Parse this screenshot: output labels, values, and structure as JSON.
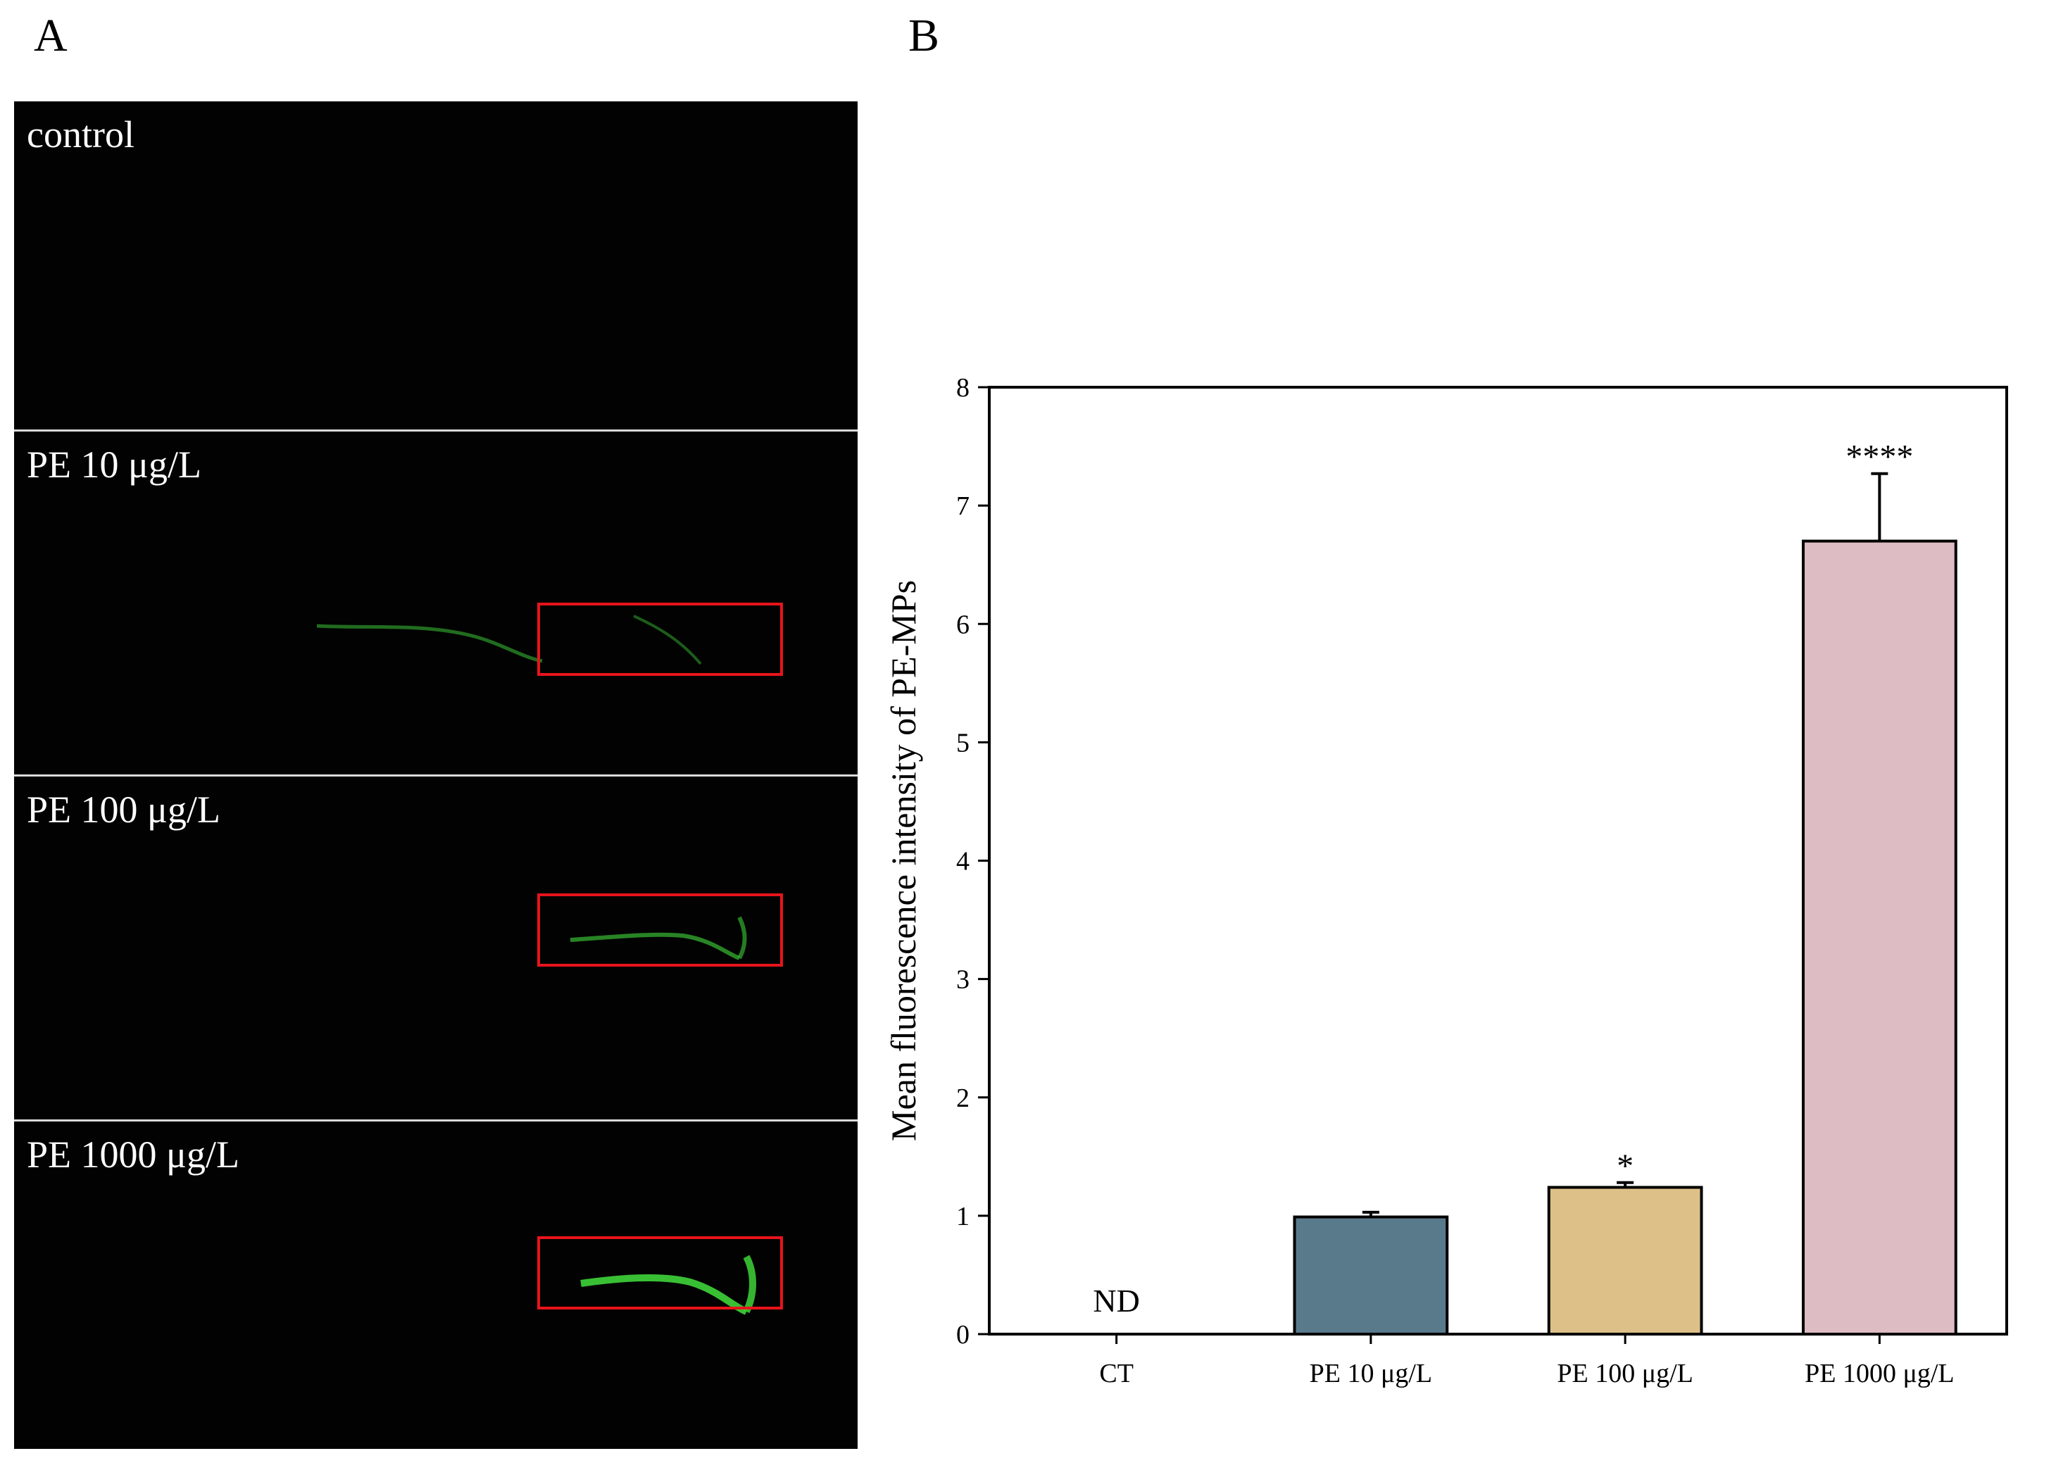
{
  "panel_labels": {
    "a": "A",
    "b": "B"
  },
  "micrographs": [
    {
      "label": "control",
      "highlight": false
    },
    {
      "label": "PE 10 μg/L",
      "highlight": true
    },
    {
      "label": "PE 100 μg/L",
      "highlight": true
    },
    {
      "label": "PE 1000 μg/L",
      "highlight": true
    }
  ],
  "colors": {
    "highlight_box": "#e8141b",
    "fluorescence": "#3fd43a"
  },
  "chart_data": {
    "type": "bar",
    "title": "",
    "xlabel": "",
    "ylabel": "Mean fluorescence intensity of PE-MPs",
    "categories": [
      "CT",
      "PE 10 μg/L",
      "PE 100 μg/L",
      "PE 1000 μg/L"
    ],
    "values": [
      0,
      0.99,
      1.24,
      6.7
    ],
    "errors": [
      0,
      0.04,
      0.04,
      0.57
    ],
    "bar_colors": [
      "#ffffff",
      "#587a8b",
      "#dcc088",
      "#ddbcc3"
    ],
    "annotations": [
      "ND",
      "",
      "*",
      "****"
    ],
    "ylim": [
      0,
      8
    ],
    "yticks": [
      0,
      1,
      2,
      3,
      4,
      5,
      6,
      7,
      8
    ],
    "grid": false,
    "legend": "none"
  }
}
